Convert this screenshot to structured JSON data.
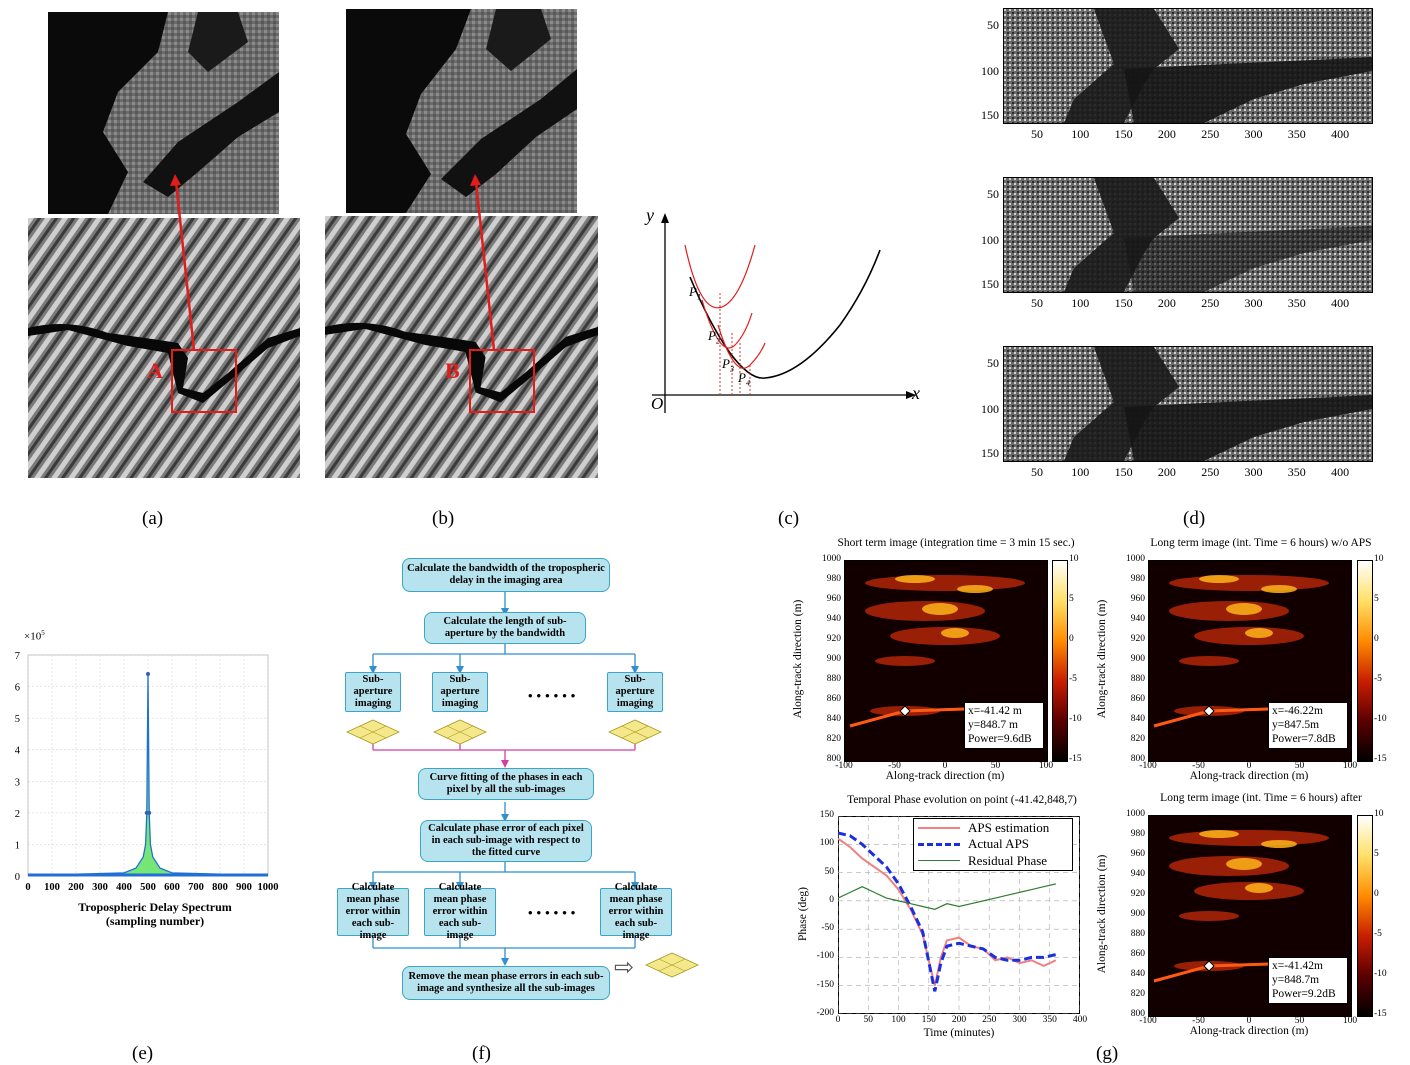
{
  "captions": {
    "a": "(a)",
    "b": "(b)",
    "c": "(c)",
    "d": "(d)",
    "e": "(e)",
    "f": "(f)",
    "g": "(g)"
  },
  "panel_a": {
    "region_label": "A"
  },
  "panel_b": {
    "region_label": "B"
  },
  "panel_c": {
    "y_label": "y",
    "x_label": "x",
    "origin_label": "O",
    "points": [
      "P",
      "P",
      "P",
      "P"
    ],
    "subscripts": [
      "1",
      "2",
      "3",
      "4"
    ]
  },
  "panel_d": {
    "y_ticks": [
      "50",
      "100",
      "150"
    ],
    "x_ticks": [
      "50",
      "100",
      "150",
      "200",
      "250",
      "300",
      "350",
      "400"
    ]
  },
  "panel_e": {
    "exponent": "×10",
    "exponent_power": "5",
    "xlabel_line1": "Tropospheric Delay Spectrum",
    "xlabel_line2": "(sampling number)"
  },
  "panel_f": {
    "step1": "Calculate the bandwidth of the tropospheric delay in the imaging area",
    "step2": "Calculate the length of sub-aperture by the bandwidth",
    "sub_aperture": "Sub-aperture imaging",
    "dots": "••••••",
    "step3": "Curve fitting of the phases in each pixel by all the sub-images",
    "step4": "Calculate phase error of each pixel in each sub-image with respect to the fitted curve",
    "mean1": "Calculate mean phase error within each sub-image",
    "mean2": "Calculate mean phase error within each sub-image",
    "mean3": "Calculate mean phase error within each sub-image",
    "step5": "Remove the mean phase errors in each sub-image and synthesize all the sub-images",
    "arrow_symbol": "⇨"
  },
  "panel_g": {
    "plots": [
      {
        "title": "Short term image (integration time = 3 min 15 sec.)",
        "info": [
          "x=-41.42 m",
          "y=848.7 m",
          "Power=9.6dB"
        ],
        "ylabel": "Along-track direction (m)",
        "xlabel": "Along-track direction (m)"
      },
      {
        "title": "Long term image (int. Time = 6 hours) w/o APS",
        "info": [
          "x=-46.22m",
          "y=847.5m",
          "Power=7.8dB"
        ],
        "ylabel": "Along-track direction (m)",
        "xlabel": "Along-track direction (m)"
      },
      {
        "title": "Long term image (int. Time = 6 hours) after",
        "info": [
          "x=-41.42m",
          "y=848.7m",
          "Power=9.2dB"
        ],
        "ylabel": "Along-track direction (m)",
        "xlabel": "Along-track direction (m)"
      }
    ],
    "y_ticks": [
      "1000",
      "980",
      "960",
      "940",
      "920",
      "900",
      "880",
      "860",
      "840",
      "820",
      "800"
    ],
    "x_ticks": [
      "-100",
      "-50",
      "0",
      "50",
      "100"
    ],
    "colorbar_ticks": [
      "10",
      "5",
      "0",
      "-5",
      "-10",
      "-15"
    ],
    "phase_plot": {
      "title": "Temporal Phase evolution on point (-41.42,848,7)",
      "ylabel": "Phase (deg)",
      "xlabel": "Time (minutes)",
      "legend": [
        "APS estimation",
        "Actual APS",
        "Residual Phase"
      ]
    }
  },
  "chart_data": [
    {
      "type": "line",
      "title": "",
      "xlabel": "Tropospheric Delay Spectrum (sampling number)",
      "ylabel": "",
      "x_ticks": [
        0,
        100,
        200,
        300,
        400,
        500,
        600,
        700,
        800,
        900,
        1000
      ],
      "y_ticks": [
        0,
        1,
        2,
        3,
        4,
        5,
        6,
        7
      ],
      "y_scale_note": "×10^5",
      "xlim": [
        0,
        1000
      ],
      "ylim": [
        0,
        7
      ],
      "grid": true,
      "series": [
        {
          "x": [
            0,
            400,
            450,
            480,
            490,
            495,
            500,
            505,
            510,
            520,
            550,
            600,
            1000
          ],
          "values": [
            0.02,
            0.1,
            0.25,
            0.6,
            1.0,
            2.0,
            6.4,
            2.0,
            1.0,
            0.6,
            0.25,
            0.1,
            0.02
          ]
        }
      ]
    },
    {
      "type": "line",
      "title": "Temporal Phase evolution on point (-41.42,848,7)",
      "xlabel": "Time (minutes)",
      "ylabel": "Phase (deg)",
      "x_ticks": [
        0,
        50,
        100,
        150,
        200,
        250,
        300,
        350,
        400
      ],
      "y_ticks": [
        150,
        100,
        50,
        0,
        -50,
        -100,
        -150,
        -200
      ],
      "xlim": [
        0,
        400
      ],
      "ylim": [
        -200,
        150
      ],
      "legend": "top-right",
      "grid": true,
      "series": [
        {
          "name": "APS estimation",
          "x": [
            0,
            20,
            40,
            60,
            80,
            100,
            120,
            140,
            160,
            170,
            180,
            200,
            220,
            240,
            260,
            280,
            300,
            320,
            340,
            360
          ],
          "values": [
            110,
            95,
            75,
            60,
            45,
            20,
            -15,
            -60,
            -150,
            -100,
            -70,
            -65,
            -80,
            -85,
            -105,
            -100,
            -110,
            -105,
            -115,
            -105
          ]
        },
        {
          "name": "Actual APS",
          "x": [
            0,
            20,
            40,
            60,
            80,
            100,
            120,
            140,
            160,
            170,
            180,
            200,
            220,
            240,
            260,
            280,
            300,
            320,
            340,
            360
          ],
          "values": [
            120,
            115,
            100,
            80,
            60,
            30,
            -10,
            -55,
            -160,
            -110,
            -80,
            -75,
            -80,
            -85,
            -100,
            -105,
            -105,
            -100,
            -100,
            -95
          ]
        },
        {
          "name": "Residual Phase",
          "x": [
            0,
            20,
            40,
            60,
            80,
            100,
            120,
            140,
            160,
            180,
            200,
            220,
            240,
            260,
            280,
            300,
            320,
            340,
            360
          ],
          "values": [
            5,
            15,
            25,
            15,
            5,
            0,
            -5,
            -10,
            -15,
            -5,
            -10,
            -5,
            0,
            5,
            10,
            15,
            20,
            25,
            30
          ]
        }
      ]
    }
  ]
}
